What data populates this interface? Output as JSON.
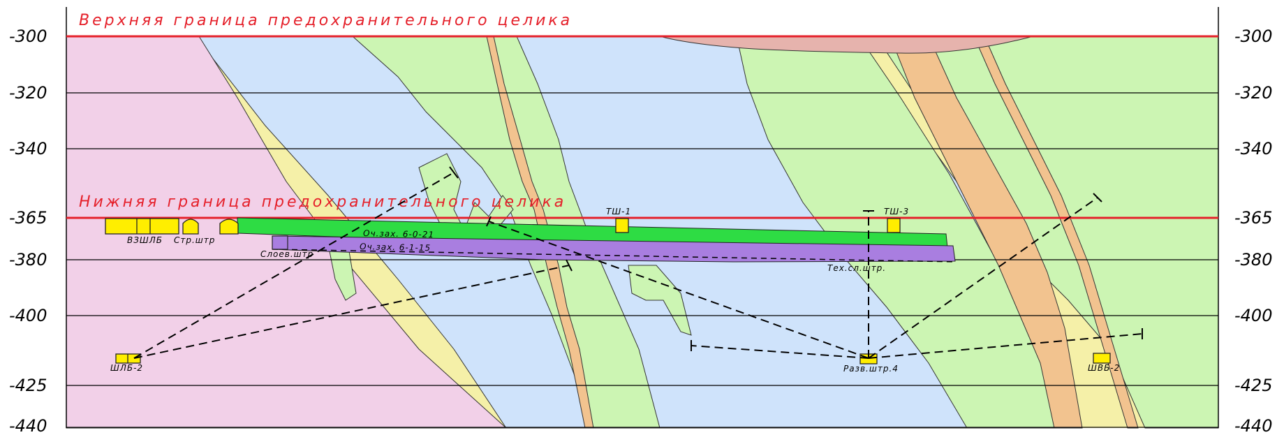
{
  "levels": [
    "-300",
    "-320",
    "-340",
    "-365",
    "-380",
    "-400",
    "-425",
    "-440"
  ],
  "boundaries": {
    "upper": "Верхняя граница предохранительного целика",
    "lower": "Нижняя граница предохранительного целика"
  },
  "workings": {
    "vshlb": "ВЗШЛБ",
    "str_shtr": "Стр.штр",
    "sloev_shtr": "Слоев.штр",
    "och_zah_1": "Оч.зах. 6-0-21",
    "och_zah_2": "Оч.зах. 6-1-15",
    "tsh1": "ТШ-1",
    "tsh3": "ТШ-3",
    "teh_sl_shtr": "Тех.сл.штр.",
    "shlb2": "ШЛБ-2",
    "razv_shtr4": "Разв.штр.4",
    "shvb2": "ШВБ-2"
  },
  "colors": {
    "pink": "#f2d0e8",
    "blue": "#cfe3fb",
    "green_light": "#ccf5b3",
    "orange": "#f2c38f",
    "yellow": "#f5f0a8",
    "salmon": "#e6b3ad",
    "boundary_red": "#e5202a",
    "excavation_green": "#2edc44",
    "excavation_purple": "#a97ee0",
    "working_yellow": "#ffee00"
  }
}
